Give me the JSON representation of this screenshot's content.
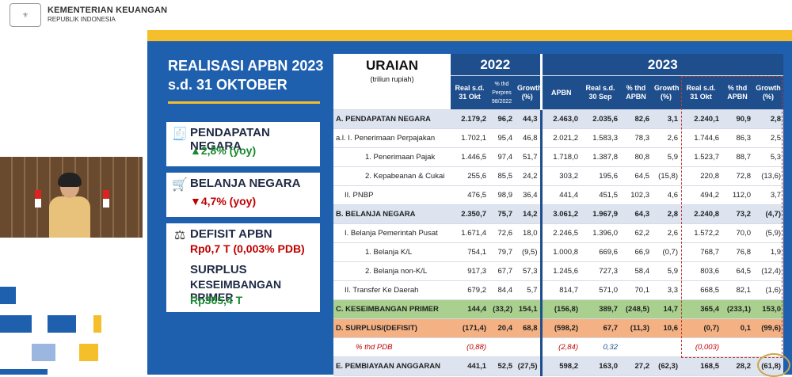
{
  "header": {
    "org_line1": "KEMENTERIAN KEUANGAN",
    "org_line2": "REPUBLIK INDONESIA",
    "logo_icon": "ministry-emblem-icon"
  },
  "slide": {
    "title_line1": "REALISASI APBN 2023",
    "title_line2": "s.d. 31 OKTOBER",
    "cards": {
      "pendapatan": {
        "label": "PENDAPATAN NEGARA",
        "value": "▲2,8% (yoy)",
        "icon": "receipt-icon",
        "color": "#1a8a2e"
      },
      "belanja": {
        "label": "BELANJA NEGARA",
        "value": "▼4,7% (yoy)",
        "icon": "cart-icon",
        "color": "#c00000"
      },
      "defisit": {
        "label": "DEFISIT APBN",
        "value": "Rp0,7 T (0,003% PDB)",
        "icon": "scale-icon",
        "color": "#c00000"
      },
      "surplus": {
        "label_line1": "SURPLUS",
        "label_line2": "KESEIMBANGAN PRIMER",
        "value": "Rp365,4 T",
        "color": "#1a8a2e"
      }
    }
  },
  "table": {
    "uraian_label": "URAIAN",
    "uraian_unit": "(triliun rupiah)",
    "year_2022": "2022",
    "year_2023": "2023",
    "subheaders": [
      "Real s.d. 31 Okt",
      "% thd Perpres 98/2022",
      "Growth (%)",
      "APBN",
      "Real s.d. 30 Sep",
      "% thd APBN",
      "Growth (%)",
      "Real s.d. 31 Okt",
      "% thd APBN",
      "Growth (%)"
    ],
    "rows": [
      {
        "label": "A.  PENDAPATAN NEGARA",
        "vals": [
          "2.179,2",
          "96,2",
          "44,3",
          "2.463,0",
          "2.035,6",
          "82,6",
          "3,1",
          "2.240,1",
          "90,9",
          "2,8"
        ]
      },
      {
        "label": "a.l.  I.  Penerimaan Perpajakan",
        "vals": [
          "1.702,1",
          "95,4",
          "46,8",
          "2.021,2",
          "1.583,3",
          "78,3",
          "2,6",
          "1.744,6",
          "86,3",
          "2,5"
        ]
      },
      {
        "label": "1. Penerimaan Pajak",
        "vals": [
          "1.446,5",
          "97,4",
          "51,7",
          "1.718,0",
          "1.387,8",
          "80,8",
          "5,9",
          "1.523,7",
          "88,7",
          "5,3"
        ]
      },
      {
        "label": "2. Kepabeanan & Cukai",
        "vals": [
          "255,6",
          "85,5",
          "24,2",
          "303,2",
          "195,6",
          "64,5",
          "(15,8)",
          "220,8",
          "72,8",
          "(13,6)"
        ]
      },
      {
        "label": "II.  PNBP",
        "vals": [
          "476,5",
          "98,9",
          "36,4",
          "441,4",
          "451,5",
          "102,3",
          "4,6",
          "494,2",
          "112,0",
          "3,7"
        ]
      },
      {
        "label": "B.  BELANJA NEGARA",
        "vals": [
          "2.350,7",
          "75,7",
          "14,2",
          "3.061,2",
          "1.967,9",
          "64,3",
          "2,8",
          "2.240,8",
          "73,2",
          "(4,7)"
        ]
      },
      {
        "label": "I.  Belanja Pemerintah Pusat",
        "vals": [
          "1.671,4",
          "72,6",
          "18,0",
          "2.246,5",
          "1.396,0",
          "62,2",
          "2,6",
          "1.572,2",
          "70,0",
          "(5,9)"
        ]
      },
      {
        "label": "1. Belanja K/L",
        "vals": [
          "754,1",
          "79,7",
          "(9,5)",
          "1.000,8",
          "669,6",
          "66,9",
          "(0,7)",
          "768,7",
          "76,8",
          "1,9"
        ]
      },
      {
        "label": "2. Belanja non-K/L",
        "vals": [
          "917,3",
          "67,7",
          "57,3",
          "1.245,6",
          "727,3",
          "58,4",
          "5,9",
          "803,6",
          "64,5",
          "(12,4)"
        ]
      },
      {
        "label": "II.  Transfer Ke Daerah",
        "vals": [
          "679,2",
          "84,4",
          "5,7",
          "814,7",
          "571,0",
          "70,1",
          "3,3",
          "668,5",
          "82,1",
          "(1,6)"
        ]
      },
      {
        "label": "C.  KESEIMBANGAN PRIMER",
        "vals": [
          "144,4",
          "(33,2)",
          "154,1",
          "(156,8)",
          "389,7",
          "(248,5)",
          "14,7",
          "365,4",
          "(233,1)",
          "153,0"
        ]
      },
      {
        "label": "D.  SURPLUS/(DEFISIT)",
        "vals": [
          "(171,4)",
          "20,4",
          "68,8",
          "(598,2)",
          "67,7",
          "(11,3)",
          "10,6",
          "(0,7)",
          "0,1",
          "(99,6)"
        ]
      },
      {
        "label": "% thd PDB",
        "vals": [
          "(0,88)",
          "",
          "",
          "(2,84)",
          "0,32",
          "",
          "",
          "(0,003)",
          "",
          ""
        ]
      },
      {
        "label": "E.  PEMBIAYAAN ANGGARAN",
        "vals": [
          "441,1",
          "52,5",
          "(27,5)",
          "598,2",
          "163,0",
          "27,2",
          "(62,3)",
          "168,5",
          "28,2",
          "(61,8)"
        ]
      }
    ]
  }
}
